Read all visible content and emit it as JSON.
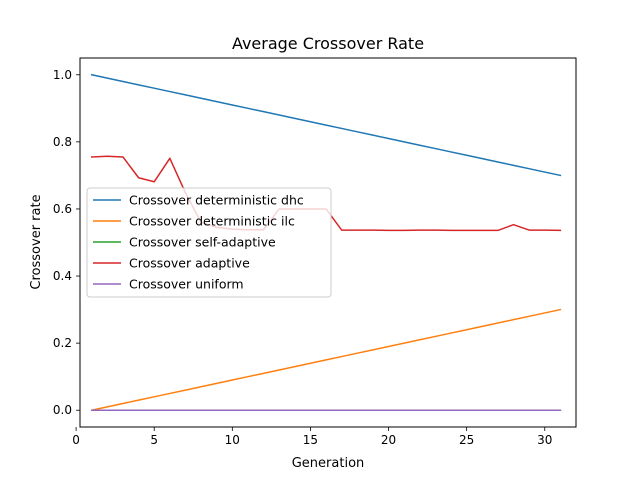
{
  "chart_data": {
    "type": "line",
    "title": "Average Crossover Rate",
    "xlabel": "Generation",
    "ylabel": "Crossover rate",
    "xlim": [
      0.25,
      32.0
    ],
    "ylim": [
      -0.05,
      1.05
    ],
    "xticks": [
      0,
      5,
      10,
      15,
      20,
      25,
      30
    ],
    "yticks": [
      0.0,
      0.2,
      0.4,
      0.6,
      0.8,
      1.0
    ],
    "xtick_labels": [
      "0",
      "5",
      "10",
      "15",
      "20",
      "25",
      "30"
    ],
    "ytick_labels": [
      "0.0",
      "0.2",
      "0.4",
      "0.6",
      "0.8",
      "1.0"
    ],
    "grid": false,
    "legend_position": "center-left",
    "x": [
      1,
      2,
      3,
      4,
      5,
      6,
      7,
      8,
      9,
      10,
      11,
      12,
      13,
      14,
      15,
      16,
      17,
      18,
      19,
      20,
      21,
      22,
      23,
      24,
      25,
      26,
      27,
      28,
      29,
      30,
      31
    ],
    "series": [
      {
        "name": "Crossover deterministic dhc",
        "color": "#1f77b4",
        "values": [
          1.0,
          0.99,
          0.98,
          0.97,
          0.96,
          0.95,
          0.94,
          0.93,
          0.92,
          0.91,
          0.9,
          0.89,
          0.88,
          0.87,
          0.86,
          0.85,
          0.84,
          0.83,
          0.82,
          0.81,
          0.8,
          0.79,
          0.78,
          0.77,
          0.76,
          0.75,
          0.74,
          0.73,
          0.72,
          0.71,
          0.7
        ]
      },
      {
        "name": "Crossover deterministic ilc",
        "color": "#ff7f0e",
        "values": [
          0.0,
          0.01,
          0.02,
          0.03,
          0.04,
          0.05,
          0.06,
          0.07,
          0.08,
          0.09,
          0.1,
          0.11,
          0.12,
          0.13,
          0.14,
          0.15,
          0.16,
          0.17,
          0.18,
          0.19,
          0.2,
          0.21,
          0.22,
          0.23,
          0.24,
          0.25,
          0.26,
          0.27,
          0.28,
          0.29,
          0.3
        ]
      },
      {
        "name": "Crossover self-adaptive",
        "color": "#2ca02c",
        "values": [
          0,
          0,
          0,
          0,
          0,
          0,
          0,
          0,
          0,
          0,
          0,
          0,
          0,
          0,
          0,
          0,
          0,
          0,
          0,
          0,
          0,
          0,
          0,
          0,
          0,
          0,
          0,
          0,
          0,
          0,
          0
        ]
      },
      {
        "name": "Crossover adaptive",
        "color": "#d62728",
        "values": [
          0.755,
          0.757,
          0.755,
          0.693,
          0.681,
          0.751,
          0.648,
          0.56,
          0.545,
          0.54,
          0.538,
          0.538,
          0.6,
          0.6,
          0.6,
          0.6,
          0.537,
          0.537,
          0.537,
          0.536,
          0.536,
          0.537,
          0.537,
          0.536,
          0.536,
          0.536,
          0.536,
          0.553,
          0.537,
          0.537,
          0.536
        ]
      },
      {
        "name": "Crossover uniform",
        "color": "#9467bd",
        "values": [
          0,
          0,
          0,
          0,
          0,
          0,
          0,
          0,
          0,
          0,
          0,
          0,
          0,
          0,
          0,
          0,
          0,
          0,
          0,
          0,
          0,
          0,
          0,
          0,
          0,
          0,
          0,
          0,
          0,
          0,
          0
        ]
      }
    ]
  }
}
